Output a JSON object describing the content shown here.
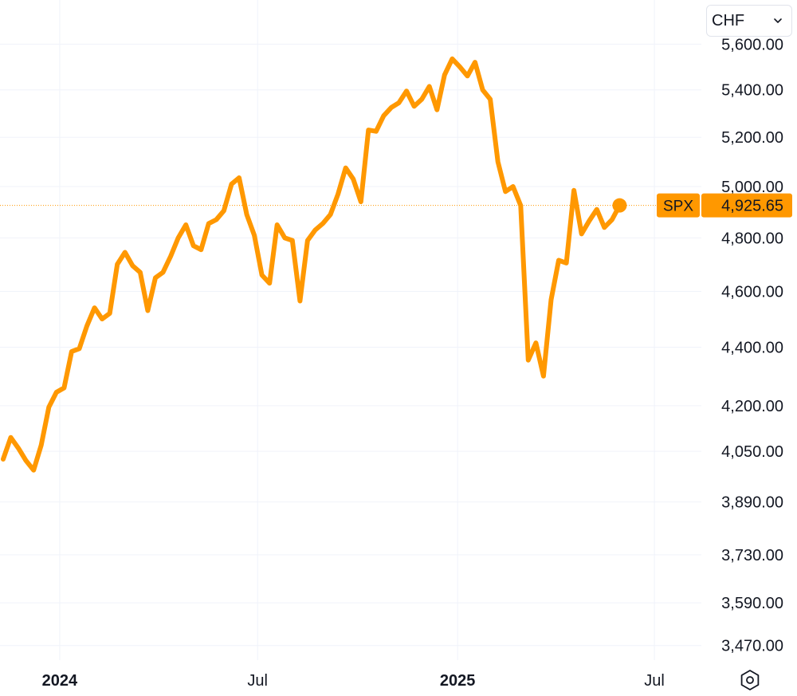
{
  "currency_select": {
    "value": "CHF",
    "chevron_icon": "chevron-down-icon"
  },
  "settings_icon": "hexagon-settings-icon",
  "colors": {
    "line": "#ff9800",
    "grid": "#f0f3fa",
    "text": "#131722",
    "label_bg": "#ff9800",
    "label_text": "#131722",
    "last_line": "#ff9800"
  },
  "chart_data": {
    "type": "line",
    "y_scale": "log",
    "grid": true,
    "series": [
      {
        "name": "SPX",
        "last_value": 4925.65,
        "last_value_label": "4,925.65",
        "points": [
          [
            "2023-11-10",
            4025
          ],
          [
            "2023-11-17",
            4095
          ],
          [
            "2023-11-24",
            4060
          ],
          [
            "2023-12-01",
            4020
          ],
          [
            "2023-12-08",
            3990
          ],
          [
            "2023-12-15",
            4070
          ],
          [
            "2023-12-22",
            4195
          ],
          [
            "2023-12-29",
            4245
          ],
          [
            "2024-01-05",
            4260
          ],
          [
            "2024-01-12",
            4385
          ],
          [
            "2024-01-19",
            4395
          ],
          [
            "2024-01-26",
            4475
          ],
          [
            "2024-02-02",
            4540
          ],
          [
            "2024-02-09",
            4500
          ],
          [
            "2024-02-16",
            4520
          ],
          [
            "2024-02-23",
            4700
          ],
          [
            "2024-03-01",
            4745
          ],
          [
            "2024-03-08",
            4695
          ],
          [
            "2024-03-15",
            4670
          ],
          [
            "2024-03-22",
            4530
          ],
          [
            "2024-03-29",
            4650
          ],
          [
            "2024-04-05",
            4670
          ],
          [
            "2024-04-12",
            4730
          ],
          [
            "2024-04-19",
            4800
          ],
          [
            "2024-04-26",
            4850
          ],
          [
            "2024-05-03",
            4770
          ],
          [
            "2024-05-10",
            4755
          ],
          [
            "2024-05-17",
            4855
          ],
          [
            "2024-05-24",
            4870
          ],
          [
            "2024-05-31",
            4905
          ],
          [
            "2024-06-07",
            5010
          ],
          [
            "2024-06-14",
            5035
          ],
          [
            "2024-06-21",
            4890
          ],
          [
            "2024-06-28",
            4810
          ],
          [
            "2024-07-05",
            4660
          ],
          [
            "2024-07-12",
            4630
          ],
          [
            "2024-07-19",
            4850
          ],
          [
            "2024-07-26",
            4800
          ],
          [
            "2024-08-02",
            4790
          ],
          [
            "2024-08-09",
            4565
          ],
          [
            "2024-08-16",
            4790
          ],
          [
            "2024-08-23",
            4830
          ],
          [
            "2024-08-30",
            4855
          ],
          [
            "2024-09-06",
            4890
          ],
          [
            "2024-09-13",
            4970
          ],
          [
            "2024-09-20",
            5075
          ],
          [
            "2024-09-27",
            5030
          ],
          [
            "2024-10-04",
            4940
          ],
          [
            "2024-10-11",
            5230
          ],
          [
            "2024-10-18",
            5225
          ],
          [
            "2024-10-25",
            5290
          ],
          [
            "2024-11-01",
            5325
          ],
          [
            "2024-11-08",
            5345
          ],
          [
            "2024-11-15",
            5395
          ],
          [
            "2024-11-22",
            5330
          ],
          [
            "2024-11-29",
            5360
          ],
          [
            "2024-12-06",
            5415
          ],
          [
            "2024-12-13",
            5315
          ],
          [
            "2024-12-20",
            5465
          ],
          [
            "2024-12-27",
            5535
          ],
          [
            "2025-01-03",
            5500
          ],
          [
            "2025-01-10",
            5460
          ],
          [
            "2025-01-17",
            5520
          ],
          [
            "2025-01-24",
            5400
          ],
          [
            "2025-01-31",
            5360
          ],
          [
            "2025-02-07",
            5100
          ],
          [
            "2025-02-14",
            4980
          ],
          [
            "2025-02-21",
            5000
          ],
          [
            "2025-02-28",
            4925
          ],
          [
            "2025-03-07",
            4355
          ],
          [
            "2025-03-14",
            4415
          ],
          [
            "2025-03-21",
            4300
          ],
          [
            "2025-03-28",
            4570
          ],
          [
            "2025-04-04",
            4715
          ],
          [
            "2025-04-11",
            4705
          ],
          [
            "2025-04-18",
            4985
          ],
          [
            "2025-04-25",
            4815
          ],
          [
            "2025-05-02",
            4865
          ],
          [
            "2025-05-09",
            4910
          ],
          [
            "2025-05-16",
            4840
          ],
          [
            "2025-05-23",
            4870
          ],
          [
            "2025-05-30",
            4925.65
          ]
        ]
      }
    ],
    "x_range": [
      "2023-11-10",
      "2025-07-31"
    ],
    "y_range": [
      3430,
      5720
    ],
    "y_ticks": [
      {
        "value": 5600,
        "label": "5,600.00"
      },
      {
        "value": 5400,
        "label": "5,400.00"
      },
      {
        "value": 5200,
        "label": "5,200.00"
      },
      {
        "value": 5000,
        "label": "5,000.00"
      },
      {
        "value": 4800,
        "label": "4,800.00"
      },
      {
        "value": 4600,
        "label": "4,600.00"
      },
      {
        "value": 4400,
        "label": "4,400.00"
      },
      {
        "value": 4200,
        "label": "4,200.00"
      },
      {
        "value": 4050,
        "label": "4,050.00"
      },
      {
        "value": 3890,
        "label": "3,890.00"
      },
      {
        "value": 3730,
        "label": "3,730.00"
      },
      {
        "value": 3590,
        "label": "3,590.00"
      },
      {
        "value": 3470,
        "label": "3,470.00"
      }
    ],
    "x_ticks": [
      {
        "date": "2024-01-01",
        "label": "2024",
        "bold": true
      },
      {
        "date": "2024-07-01",
        "label": "Jul",
        "bold": false
      },
      {
        "date": "2025-01-01",
        "label": "2025",
        "bold": true
      },
      {
        "date": "2025-07-01",
        "label": "Jul",
        "bold": false
      }
    ]
  }
}
